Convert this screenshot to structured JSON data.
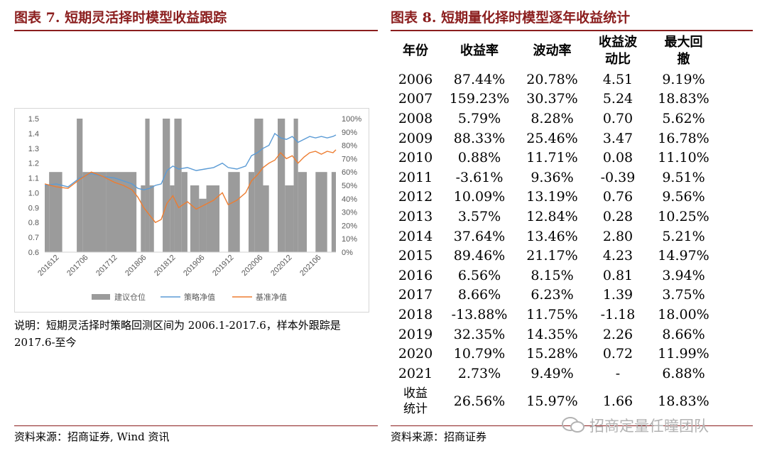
{
  "left_panel": {
    "title": "图表 7. 短期灵活择时模型收益跟踪",
    "note": "说明：短期灵活择时策略回测区间为 2006.1-2017.6，样本外跟踪是 2017.6-至今",
    "source": "资料来源：招商证券, Wind 资讯"
  },
  "right_panel": {
    "title": "图表 8. 短期量化择时模型逐年收益统计",
    "source": "资料来源：招商证券"
  },
  "watermark": "招商定量任瞳团队",
  "colors": {
    "accent": "#8b1e1e",
    "bar": "#9b9b9b",
    "strategy": "#5b9bd5",
    "benchmark": "#ed7d31"
  },
  "table": {
    "headers": [
      "年份",
      "收益率",
      "波动率",
      "收益波动比",
      "最大回撤"
    ],
    "header_lines": [
      [
        "年份"
      ],
      [
        "收益率"
      ],
      [
        "波动率"
      ],
      [
        "收益波",
        "动比"
      ],
      [
        "最大回",
        "撤"
      ]
    ],
    "rows": [
      [
        "2006",
        "87.44%",
        "20.78%",
        "4.51",
        "9.19%"
      ],
      [
        "2007",
        "159.23%",
        "30.37%",
        "5.24",
        "18.83%"
      ],
      [
        "2008",
        "5.79%",
        "8.28%",
        "0.70",
        "5.62%"
      ],
      [
        "2009",
        "88.33%",
        "25.46%",
        "3.47",
        "16.78%"
      ],
      [
        "2010",
        "0.88%",
        "11.71%",
        "0.08",
        "11.10%"
      ],
      [
        "2011",
        "-3.61%",
        "9.36%",
        "-0.39",
        "9.51%"
      ],
      [
        "2012",
        "10.09%",
        "13.19%",
        "0.76",
        "9.56%"
      ],
      [
        "2013",
        "3.57%",
        "12.84%",
        "0.28",
        "10.25%"
      ],
      [
        "2014",
        "37.64%",
        "13.46%",
        "2.80",
        "5.21%"
      ],
      [
        "2015",
        "89.46%",
        "21.17%",
        "4.23",
        "14.97%"
      ],
      [
        "2016",
        "6.56%",
        "8.15%",
        "0.81",
        "3.94%"
      ],
      [
        "2017",
        "8.66%",
        "6.23%",
        "1.39",
        "3.75%"
      ],
      [
        "2018",
        "-13.88%",
        "11.75%",
        "-1.18",
        "18.00%"
      ],
      [
        "2019",
        "32.35%",
        "14.35%",
        "2.26",
        "8.66%"
      ],
      [
        "2020",
        "10.79%",
        "15.28%",
        "0.72",
        "11.99%"
      ],
      [
        "2021",
        "2.73%",
        "9.49%",
        "-",
        "6.88%"
      ]
    ],
    "total": {
      "label_lines": [
        "收益",
        "统计"
      ],
      "values": [
        "26.56%",
        "15.97%",
        "1.66",
        "18.83%"
      ]
    }
  },
  "chart_data": {
    "type": "line",
    "x_ticks": [
      "201612",
      "201706",
      "201712",
      "201806",
      "201812",
      "201906",
      "201912",
      "202006",
      "202012",
      "202106"
    ],
    "y_left": {
      "min": 0.6,
      "max": 1.5,
      "ticks": [
        "0.6",
        "0.7",
        "0.8",
        "0.9",
        "1.0",
        "1.1",
        "1.2",
        "1.3",
        "1.4",
        "1.5"
      ]
    },
    "y_right": {
      "min": 0,
      "max": 100,
      "ticks": [
        "0%",
        "10%",
        "20%",
        "30%",
        "40%",
        "50%",
        "60%",
        "70%",
        "80%",
        "90%",
        "100%"
      ]
    },
    "legend": [
      "建议仓位",
      "策略净值",
      "基准净值"
    ],
    "legend_position": "bottom",
    "grid": false,
    "position_bars": [
      [
        0.0,
        0.015,
        50
      ],
      [
        0.015,
        0.06,
        60
      ],
      [
        0.06,
        0.11,
        0
      ],
      [
        0.11,
        0.13,
        100
      ],
      [
        0.13,
        0.21,
        60
      ],
      [
        0.21,
        0.315,
        60
      ],
      [
        0.315,
        0.33,
        0
      ],
      [
        0.33,
        0.345,
        50
      ],
      [
        0.345,
        0.36,
        100
      ],
      [
        0.36,
        0.375,
        50
      ],
      [
        0.375,
        0.405,
        0
      ],
      [
        0.405,
        0.43,
        100
      ],
      [
        0.43,
        0.445,
        50
      ],
      [
        0.445,
        0.47,
        100
      ],
      [
        0.47,
        0.49,
        60
      ],
      [
        0.49,
        0.5,
        0
      ],
      [
        0.5,
        0.53,
        50
      ],
      [
        0.53,
        0.555,
        40
      ],
      [
        0.555,
        0.6,
        50
      ],
      [
        0.6,
        0.63,
        0
      ],
      [
        0.63,
        0.67,
        60
      ],
      [
        0.67,
        0.7,
        0
      ],
      [
        0.7,
        0.72,
        60
      ],
      [
        0.72,
        0.75,
        100
      ],
      [
        0.75,
        0.77,
        50
      ],
      [
        0.77,
        0.8,
        0
      ],
      [
        0.8,
        0.825,
        100
      ],
      [
        0.825,
        0.855,
        50
      ],
      [
        0.855,
        0.87,
        100
      ],
      [
        0.87,
        0.9,
        60
      ],
      [
        0.9,
        0.93,
        0
      ],
      [
        0.93,
        0.97,
        60
      ],
      [
        0.97,
        0.985,
        0
      ],
      [
        0.985,
        1.0,
        60
      ]
    ],
    "series": [
      {
        "name": "策略净值",
        "points": [
          [
            0.0,
            1.05
          ],
          [
            0.04,
            1.06
          ],
          [
            0.08,
            1.04
          ],
          [
            0.12,
            1.1
          ],
          [
            0.16,
            1.13
          ],
          [
            0.2,
            1.11
          ],
          [
            0.24,
            1.1
          ],
          [
            0.27,
            1.08
          ],
          [
            0.3,
            1.06
          ],
          [
            0.32,
            1.03
          ],
          [
            0.34,
            1.02
          ],
          [
            0.36,
            1.03
          ],
          [
            0.38,
            1.05
          ],
          [
            0.4,
            1.06
          ],
          [
            0.42,
            1.15
          ],
          [
            0.44,
            1.18
          ],
          [
            0.46,
            1.16
          ],
          [
            0.49,
            1.17
          ],
          [
            0.52,
            1.15
          ],
          [
            0.55,
            1.16
          ],
          [
            0.58,
            1.17
          ],
          [
            0.61,
            1.2
          ],
          [
            0.63,
            1.17
          ],
          [
            0.66,
            1.16
          ],
          [
            0.69,
            1.18
          ],
          [
            0.71,
            1.25
          ],
          [
            0.73,
            1.27
          ],
          [
            0.75,
            1.3
          ],
          [
            0.77,
            1.32
          ],
          [
            0.79,
            1.4
          ],
          [
            0.81,
            1.37
          ],
          [
            0.83,
            1.36
          ],
          [
            0.85,
            1.38
          ],
          [
            0.87,
            1.34
          ],
          [
            0.89,
            1.36
          ],
          [
            0.91,
            1.38
          ],
          [
            0.93,
            1.37
          ],
          [
            0.95,
            1.38
          ],
          [
            0.97,
            1.37
          ],
          [
            0.99,
            1.38
          ],
          [
            1.0,
            1.39
          ]
        ]
      },
      {
        "name": "基准净值",
        "points": [
          [
            0.0,
            1.06
          ],
          [
            0.04,
            1.04
          ],
          [
            0.08,
            1.03
          ],
          [
            0.12,
            1.09
          ],
          [
            0.16,
            1.14
          ],
          [
            0.2,
            1.11
          ],
          [
            0.24,
            1.07
          ],
          [
            0.27,
            1.05
          ],
          [
            0.3,
            1.02
          ],
          [
            0.32,
            0.97
          ],
          [
            0.34,
            0.9
          ],
          [
            0.36,
            0.85
          ],
          [
            0.38,
            0.8
          ],
          [
            0.4,
            0.82
          ],
          [
            0.42,
            0.93
          ],
          [
            0.44,
            0.98
          ],
          [
            0.46,
            0.9
          ],
          [
            0.49,
            0.94
          ],
          [
            0.52,
            0.89
          ],
          [
            0.55,
            0.92
          ],
          [
            0.58,
            0.95
          ],
          [
            0.61,
            1.0
          ],
          [
            0.63,
            0.92
          ],
          [
            0.66,
            0.95
          ],
          [
            0.69,
            1.0
          ],
          [
            0.71,
            1.08
          ],
          [
            0.73,
            1.12
          ],
          [
            0.75,
            1.17
          ],
          [
            0.77,
            1.2
          ],
          [
            0.79,
            1.22
          ],
          [
            0.81,
            1.27
          ],
          [
            0.83,
            1.23
          ],
          [
            0.85,
            1.25
          ],
          [
            0.87,
            1.2
          ],
          [
            0.89,
            1.24
          ],
          [
            0.91,
            1.27
          ],
          [
            0.93,
            1.28
          ],
          [
            0.95,
            1.26
          ],
          [
            0.97,
            1.28
          ],
          [
            0.99,
            1.27
          ],
          [
            1.0,
            1.29
          ]
        ]
      }
    ]
  }
}
